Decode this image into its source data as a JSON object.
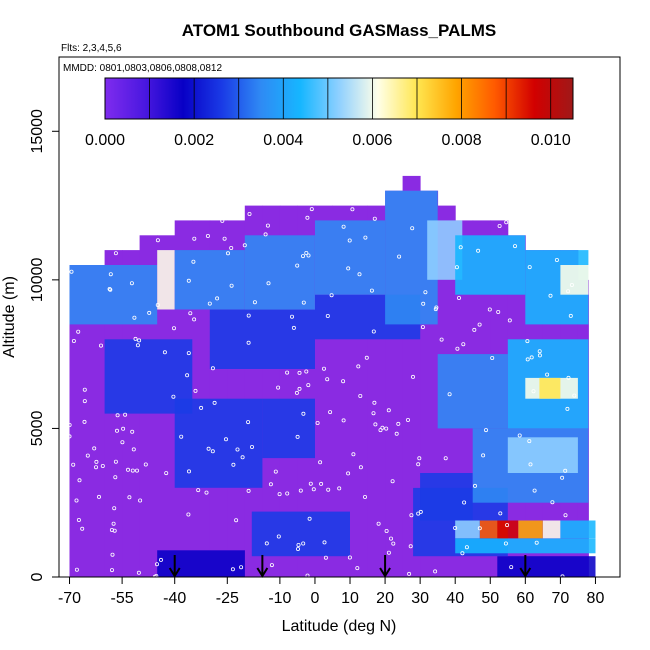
{
  "chart_data": {
    "type": "heatmap",
    "title": "ATOM1 Southbound GASMass_PALMS",
    "subtitle_flights": "Flts: 2,3,4,5,6",
    "subtitle_dates": "MMDD: 0801,0803,0806,0808,0812",
    "xlabel": "Latitude (deg N)",
    "ylabel": "Altitude (m)",
    "xlim": [
      -73,
      87
    ],
    "ylim": [
      0,
      17500
    ],
    "xticks": [
      -70,
      -55,
      -40,
      -25,
      -10,
      0,
      10,
      20,
      30,
      40,
      50,
      60,
      70,
      80
    ],
    "xtick_labels": [
      "-70",
      "-55",
      "-40",
      "-25",
      "-10",
      "0",
      "10",
      "20",
      "30",
      "40",
      "50",
      "60",
      "70",
      "80"
    ],
    "yticks": [
      0,
      5000,
      10000,
      15000
    ],
    "ytick_labels": [
      "0",
      "5000",
      "10000",
      "15000"
    ],
    "colorbar": {
      "range": [
        0,
        0.0105
      ],
      "tick_values": [
        0,
        0.002,
        0.004,
        0.006,
        0.008,
        0.01
      ],
      "tick_labels": [
        "0.000",
        "0.002",
        "0.004",
        "0.006",
        "0.008",
        "0.010"
      ],
      "bin_edges": [
        0,
        0.001,
        0.002,
        0.003,
        0.004,
        0.005,
        0.006,
        0.007,
        0.008,
        0.009,
        0.01,
        0.0105
      ],
      "colors": [
        "#7f2cee",
        "#4b18e0",
        "#0800c6",
        "#1a3be6",
        "#2f8af4",
        "#16b6ff",
        "#8fd0ff",
        "#ffffe8",
        "#ffe650",
        "#ffa500",
        "#ff5a00",
        "#d20000",
        "#a01818"
      ]
    },
    "background_color": "#8a2be2",
    "lat_bins": [
      -70,
      -65,
      -60,
      -55,
      -50,
      -45,
      -40,
      -35,
      -30,
      -25,
      -20,
      -15,
      -10,
      -5,
      0,
      5,
      10,
      15,
      20,
      25,
      30,
      35,
      40,
      45,
      50,
      55,
      60,
      65,
      70,
      75
    ],
    "top_altitude": [
      10500,
      10500,
      11000,
      11000,
      11500,
      11500,
      12000,
      12000,
      12000,
      12000,
      12500,
      12500,
      12500,
      12500,
      12500,
      12500,
      12500,
      12500,
      13000,
      13500,
      13000,
      12500,
      12000,
      12000,
      12000,
      11500,
      11000,
      11000,
      11000,
      10000
    ],
    "cells": [
      {
        "lat": [
          52,
          80
        ],
        "alt": [
          0,
          700
        ],
        "value": 0.0006
      },
      {
        "lat": [
          -45,
          -20
        ],
        "alt": [
          0,
          900
        ],
        "value": 0.0008
      },
      {
        "lat": [
          -18,
          10
        ],
        "alt": [
          700,
          2200
        ],
        "value": 0.0013
      },
      {
        "lat": [
          28,
          55
        ],
        "alt": [
          700,
          3000
        ],
        "value": 0.0012
      },
      {
        "lat": [
          40,
          80
        ],
        "alt": [
          800,
          1300
        ],
        "value": 0.0035
      },
      {
        "lat": [
          47,
          55
        ],
        "alt": [
          1300,
          1900
        ],
        "value": 0.0085
      },
      {
        "lat": [
          52,
          58
        ],
        "alt": [
          1300,
          1900
        ],
        "value": 0.0098
      },
      {
        "lat": [
          58,
          65
        ],
        "alt": [
          1300,
          1900
        ],
        "value": 0.0075
      },
      {
        "lat": [
          65,
          70
        ],
        "alt": [
          1300,
          1900
        ],
        "value": 0.0058
      },
      {
        "lat": [
          40,
          47
        ],
        "alt": [
          1300,
          1900
        ],
        "value": 0.0043
      },
      {
        "lat": [
          70,
          80
        ],
        "alt": [
          1300,
          1900
        ],
        "value": 0.0035
      },
      {
        "lat": [
          30,
          45
        ],
        "alt": [
          1900,
          3500
        ],
        "value": 0.0014
      },
      {
        "lat": [
          45,
          78
        ],
        "alt": [
          2500,
          5000
        ],
        "value": 0.0022
      },
      {
        "lat": [
          55,
          75
        ],
        "alt": [
          3500,
          4700
        ],
        "value": 0.0042
      },
      {
        "lat": [
          -40,
          -15
        ],
        "alt": [
          3000,
          6000
        ],
        "value": 0.0018
      },
      {
        "lat": [
          -15,
          0
        ],
        "alt": [
          4000,
          6000
        ],
        "value": 0.0012
      },
      {
        "lat": [
          35,
          55
        ],
        "alt": [
          5000,
          7500
        ],
        "value": 0.0023
      },
      {
        "lat": [
          55,
          78
        ],
        "alt": [
          5000,
          8000
        ],
        "value": 0.0035
      },
      {
        "lat": [
          60,
          75
        ],
        "alt": [
          6000,
          6700
        ],
        "value": 0.0058
      },
      {
        "lat": [
          64,
          70
        ],
        "alt": [
          6000,
          6700
        ],
        "value": 0.0068
      },
      {
        "lat": [
          -60,
          -35
        ],
        "alt": [
          5500,
          8000
        ],
        "value": 0.0012
      },
      {
        "lat": [
          -30,
          0
        ],
        "alt": [
          7000,
          9000
        ],
        "value": 0.0016
      },
      {
        "lat": [
          0,
          30
        ],
        "alt": [
          8000,
          9500
        ],
        "value": 0.0017
      },
      {
        "lat": [
          -70,
          -45
        ],
        "alt": [
          8500,
          10500
        ],
        "value": 0.0024
      },
      {
        "lat": [
          -45,
          -40
        ],
        "alt": [
          9000,
          11000
        ],
        "value": 0.0053
      },
      {
        "lat": [
          -40,
          -20
        ],
        "alt": [
          9000,
          11000
        ],
        "value": 0.0022
      },
      {
        "lat": [
          -20,
          0
        ],
        "alt": [
          9000,
          11500
        ],
        "value": 0.0021
      },
      {
        "lat": [
          0,
          20
        ],
        "alt": [
          9500,
          12000
        ],
        "value": 0.0024
      },
      {
        "lat": [
          20,
          35
        ],
        "alt": [
          8500,
          13000
        ],
        "value": 0.0028
      },
      {
        "lat": [
          32,
          42
        ],
        "alt": [
          10000,
          12000
        ],
        "value": 0.0048
      },
      {
        "lat": [
          40,
          60
        ],
        "alt": [
          9500,
          11500
        ],
        "value": 0.0039
      },
      {
        "lat": [
          60,
          78
        ],
        "alt": [
          8500,
          11000
        ],
        "value": 0.0032
      },
      {
        "lat": [
          70,
          78
        ],
        "alt": [
          9500,
          10500
        ],
        "value": 0.0053
      }
    ],
    "flight_track_markers": {
      "color": "#ffffff",
      "note": "white open circles along flight profiles"
    },
    "arrows_latitude": [
      -40,
      -15,
      20,
      60
    ]
  }
}
